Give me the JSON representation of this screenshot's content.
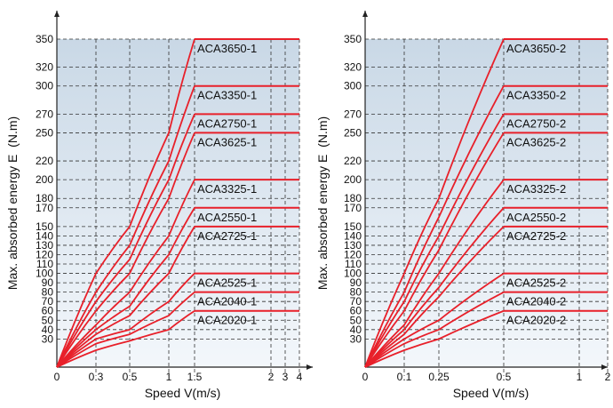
{
  "colors": {
    "curve": "#e8202a",
    "plot_bg_top": "#c9d8e6",
    "plot_bg_bottom": "#f3f7fb",
    "grid": "#333333",
    "axis": "#222222",
    "text": "#111111"
  },
  "chart_data": [
    {
      "type": "line",
      "ylabel": "Max. absorbed energy E  (N.m)",
      "xlabel": "Speed V(m/s)",
      "xticks": [
        {
          "v": 0,
          "label": "0"
        },
        {
          "v": 0.3,
          "label": "0.3"
        },
        {
          "v": 0.5,
          "label": "0.5"
        },
        {
          "v": 1,
          "label": "1"
        },
        {
          "v": 1.5,
          "label": "1.5"
        },
        {
          "v": 2,
          "label": "2"
        },
        {
          "v": 3,
          "label": "3"
        },
        {
          "v": 4,
          "label": "4"
        }
      ],
      "yticks": [
        30,
        40,
        50,
        60,
        70,
        80,
        90,
        100,
        110,
        120,
        130,
        140,
        150,
        170,
        180,
        200,
        220,
        250,
        270,
        300,
        320,
        350
      ],
      "x_plateau_start": 1.5,
      "x_max": 4,
      "series": [
        {
          "name": "ACA3650-1",
          "max": 350,
          "values": [
            [
              0,
              0
            ],
            [
              0.3,
              100
            ],
            [
              0.5,
              150
            ],
            [
              1,
              250
            ],
            [
              1.5,
              350
            ]
          ]
        },
        {
          "name": "ACA3350-1",
          "max": 300,
          "values": [
            [
              0,
              0
            ],
            [
              0.3,
              80
            ],
            [
              0.5,
              130
            ],
            [
              1,
              220
            ],
            [
              1.5,
              300
            ]
          ]
        },
        {
          "name": "ACA2750-1",
          "max": 270,
          "values": [
            [
              0,
              0
            ],
            [
              0.3,
              70
            ],
            [
              0.5,
              115
            ],
            [
              1,
              200
            ],
            [
              1.5,
              270
            ]
          ]
        },
        {
          "name": "ACA3625-1",
          "max": 250,
          "values": [
            [
              0,
              0
            ],
            [
              0.3,
              60
            ],
            [
              0.5,
              100
            ],
            [
              1,
              180
            ],
            [
              1.5,
              250
            ]
          ]
        },
        {
          "name": "ACA3325-1",
          "max": 200,
          "values": [
            [
              0,
              0
            ],
            [
              0.3,
              45
            ],
            [
              0.5,
              80
            ],
            [
              1,
              140
            ],
            [
              1.5,
              200
            ]
          ]
        },
        {
          "name": "ACA2550-1",
          "max": 170,
          "values": [
            [
              0,
              0
            ],
            [
              0.3,
              40
            ],
            [
              0.5,
              65
            ],
            [
              1,
              120
            ],
            [
              1.5,
              170
            ]
          ]
        },
        {
          "name": "ACA2725-1",
          "max": 150,
          "values": [
            [
              0,
              0
            ],
            [
              0.3,
              35
            ],
            [
              0.5,
              55
            ],
            [
              1,
              100
            ],
            [
              1.5,
              150
            ]
          ]
        },
        {
          "name": "ACA2525-1",
          "max": 100,
          "values": [
            [
              0,
              0
            ],
            [
              0.3,
              30
            ],
            [
              0.5,
              40
            ],
            [
              1,
              70
            ],
            [
              1.5,
              100
            ]
          ]
        },
        {
          "name": "ACA2040-1",
          "max": 80,
          "values": [
            [
              0,
              0
            ],
            [
              0.3,
              25
            ],
            [
              0.5,
              35
            ],
            [
              1,
              55
            ],
            [
              1.5,
              80
            ]
          ]
        },
        {
          "name": "ACA2020-1",
          "max": 60,
          "values": [
            [
              0,
              0
            ],
            [
              0.3,
              18
            ],
            [
              0.5,
              28
            ],
            [
              1,
              40
            ],
            [
              1.5,
              60
            ]
          ]
        }
      ]
    },
    {
      "type": "line",
      "ylabel": "Max. absorbed energy E  (N.m)",
      "xlabel": "Speed V(m/s)",
      "xticks": [
        {
          "v": 0,
          "label": "0"
        },
        {
          "v": 0.1,
          "label": "0.1"
        },
        {
          "v": 0.25,
          "label": "0.25"
        },
        {
          "v": 0.5,
          "label": "0.5"
        },
        {
          "v": 1,
          "label": "1"
        },
        {
          "v": 2,
          "label": "2"
        }
      ],
      "yticks": [
        30,
        40,
        50,
        60,
        70,
        80,
        90,
        100,
        110,
        120,
        130,
        140,
        150,
        170,
        180,
        200,
        220,
        250,
        270,
        300,
        320,
        350
      ],
      "x_plateau_start": 0.5,
      "x_max": 2,
      "series": [
        {
          "name": "ACA3650-2",
          "max": 350,
          "values": [
            [
              0,
              0
            ],
            [
              0.1,
              100
            ],
            [
              0.25,
              180
            ],
            [
              0.5,
              350
            ]
          ]
        },
        {
          "name": "ACA3350-2",
          "max": 300,
          "values": [
            [
              0,
              0
            ],
            [
              0.1,
              80
            ],
            [
              0.25,
              160
            ],
            [
              0.5,
              300
            ]
          ]
        },
        {
          "name": "ACA2750-2",
          "max": 270,
          "values": [
            [
              0,
              0
            ],
            [
              0.1,
              70
            ],
            [
              0.25,
              140
            ],
            [
              0.5,
              270
            ]
          ]
        },
        {
          "name": "ACA3625-2",
          "max": 250,
          "values": [
            [
              0,
              0
            ],
            [
              0.1,
              60
            ],
            [
              0.25,
              125
            ],
            [
              0.5,
              250
            ]
          ]
        },
        {
          "name": "ACA3325-2",
          "max": 200,
          "values": [
            [
              0,
              0
            ],
            [
              0.1,
              45
            ],
            [
              0.25,
              100
            ],
            [
              0.5,
              200
            ]
          ]
        },
        {
          "name": "ACA2550-2",
          "max": 170,
          "values": [
            [
              0,
              0
            ],
            [
              0.1,
              40
            ],
            [
              0.25,
              85
            ],
            [
              0.5,
              170
            ]
          ]
        },
        {
          "name": "ACA2725-2",
          "max": 150,
          "values": [
            [
              0,
              0
            ],
            [
              0.1,
              35
            ],
            [
              0.25,
              75
            ],
            [
              0.5,
              150
            ]
          ]
        },
        {
          "name": "ACA2525-2",
          "max": 100,
          "values": [
            [
              0,
              0
            ],
            [
              0.1,
              30
            ],
            [
              0.25,
              50
            ],
            [
              0.5,
              100
            ]
          ]
        },
        {
          "name": "ACA2040-2",
          "max": 80,
          "values": [
            [
              0,
              0
            ],
            [
              0.1,
              25
            ],
            [
              0.25,
              40
            ],
            [
              0.5,
              80
            ]
          ]
        },
        {
          "name": "ACA2020-2",
          "max": 60,
          "values": [
            [
              0,
              0
            ],
            [
              0.1,
              18
            ],
            [
              0.25,
              30
            ],
            [
              0.5,
              60
            ]
          ]
        }
      ]
    }
  ]
}
